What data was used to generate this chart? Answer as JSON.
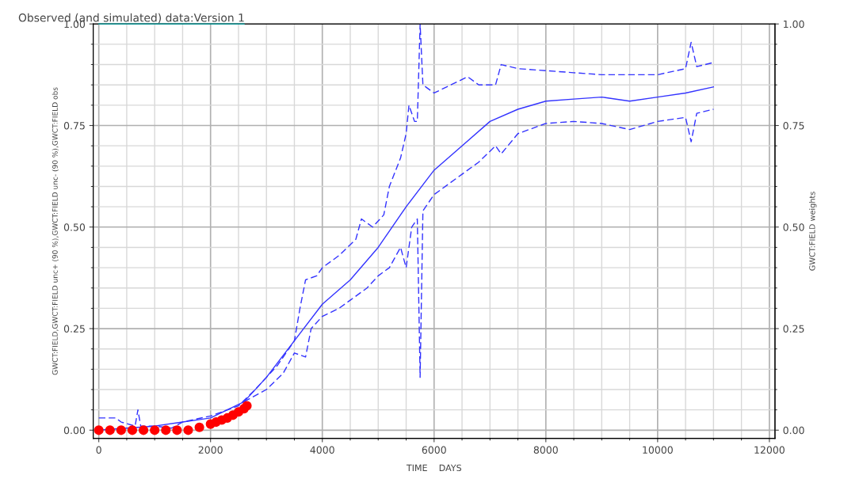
{
  "chart_data": {
    "type": "line",
    "title": "Observed (and simulated) data:Version 1",
    "xlabel": "TIME    DAYS",
    "ylabel": "GWCT:FIELD,GWCT:FIELD unc+ (90 %),GWCT:FIELD unc- (90 %),GWCT:FIELD obs",
    "y2label": "GWCT:FIELD weights",
    "xlim": [
      -100,
      12100
    ],
    "xticks": [
      0,
      2000,
      4000,
      6000,
      8000,
      10000,
      12000
    ],
    "ylim": [
      -0.02,
      1.0
    ],
    "yticks": [
      {
        "value": 0,
        "label": "0.00"
      },
      {
        "value": 0.25,
        "label": "0.25"
      },
      {
        "value": 0.5,
        "label": "0.50"
      },
      {
        "value": 0.75,
        "label": "0.75"
      },
      {
        "value": 1.0,
        "label": "1.00"
      }
    ],
    "y2lim": [
      -0.02,
      1.0
    ],
    "y2ticks": [
      {
        "value": 0,
        "label": "0.00"
      },
      {
        "value": 0.25,
        "label": "0.25"
      },
      {
        "value": 0.5,
        "label": "0.50"
      },
      {
        "value": 0.75,
        "label": "0.75"
      },
      {
        "value": 1.0,
        "label": "1.00"
      }
    ],
    "grid": true,
    "series": [
      {
        "color": "#3333ff",
        "line_style": "solid",
        "marker": "none",
        "x": [
          0,
          500,
          1000,
          1500,
          2000,
          2600,
          3000,
          3500,
          4000,
          4500,
          5000,
          5500,
          6000,
          6500,
          7000,
          7500,
          8000,
          8500,
          9000,
          9500,
          10000,
          10500,
          11000
        ],
        "values": [
          0.0,
          0.005,
          0.01,
          0.02,
          0.03,
          0.07,
          0.13,
          0.22,
          0.31,
          0.37,
          0.45,
          0.55,
          0.64,
          0.7,
          0.76,
          0.79,
          0.81,
          0.815,
          0.82,
          0.81,
          0.82,
          0.83,
          0.845
        ]
      },
      {
        "color": "#3333ff",
        "line_style": "dashed",
        "marker": "none",
        "x": [
          0,
          300,
          400,
          650,
          700,
          750,
          1000,
          1300,
          1500,
          2000,
          2500,
          2800,
          3000,
          3200,
          3500,
          3600,
          3700,
          3900,
          4000,
          4300,
          4600,
          4700,
          4900,
          5100,
          5200,
          5400,
          5500,
          5550,
          5650,
          5700,
          5750,
          5800,
          6000,
          6300,
          6600,
          6800,
          7100,
          7200,
          7500,
          8000,
          8500,
          9000,
          9500,
          10000,
          10500,
          10600,
          10700,
          11000
        ],
        "values": [
          0.03,
          0.03,
          0.02,
          0.01,
          0.05,
          0.01,
          0.01,
          0.005,
          0.02,
          0.035,
          0.06,
          0.1,
          0.13,
          0.16,
          0.22,
          0.3,
          0.37,
          0.38,
          0.4,
          0.43,
          0.47,
          0.52,
          0.5,
          0.53,
          0.6,
          0.67,
          0.73,
          0.8,
          0.76,
          0.76,
          1.0,
          0.85,
          0.83,
          0.85,
          0.87,
          0.85,
          0.85,
          0.9,
          0.89,
          0.885,
          0.88,
          0.875,
          0.875,
          0.875,
          0.89,
          0.955,
          0.895,
          0.905
        ]
      },
      {
        "color": "#3333ff",
        "line_style": "dashed",
        "marker": "none",
        "x": [
          2600,
          3000,
          3300,
          3500,
          3700,
          3800,
          4000,
          4300,
          4500,
          4800,
          5000,
          5200,
          5400,
          5500,
          5600,
          5700,
          5750,
          5800,
          6000,
          6500,
          6800,
          7100,
          7200,
          7500,
          8000,
          8500,
          9000,
          9500,
          10000,
          10500,
          10600,
          10700,
          11000
        ],
        "values": [
          0.07,
          0.1,
          0.14,
          0.19,
          0.18,
          0.25,
          0.28,
          0.3,
          0.32,
          0.35,
          0.38,
          0.4,
          0.45,
          0.4,
          0.5,
          0.52,
          0.13,
          0.54,
          0.58,
          0.63,
          0.66,
          0.7,
          0.68,
          0.73,
          0.755,
          0.76,
          0.755,
          0.74,
          0.76,
          0.77,
          0.71,
          0.78,
          0.79
        ]
      },
      {
        "color": "#ff0000",
        "type": "scatter",
        "marker": "circle",
        "x": [
          0,
          200,
          400,
          600,
          800,
          1000,
          1200,
          1400,
          1600,
          1800,
          2000,
          2100,
          2200,
          2300,
          2400,
          2500,
          2600,
          2650
        ],
        "values": [
          0.0,
          0.0,
          0.0,
          0.0,
          0.0,
          0.0,
          0.0,
          0.0,
          0.0,
          0.007,
          0.015,
          0.02,
          0.025,
          0.03,
          0.037,
          0.045,
          0.053,
          0.06
        ]
      },
      {
        "color": "#008b8b",
        "axis": "y2",
        "line_style": "solid",
        "marker": "none",
        "x": [
          0,
          2600
        ],
        "values": [
          1.0,
          1.0
        ]
      }
    ]
  }
}
